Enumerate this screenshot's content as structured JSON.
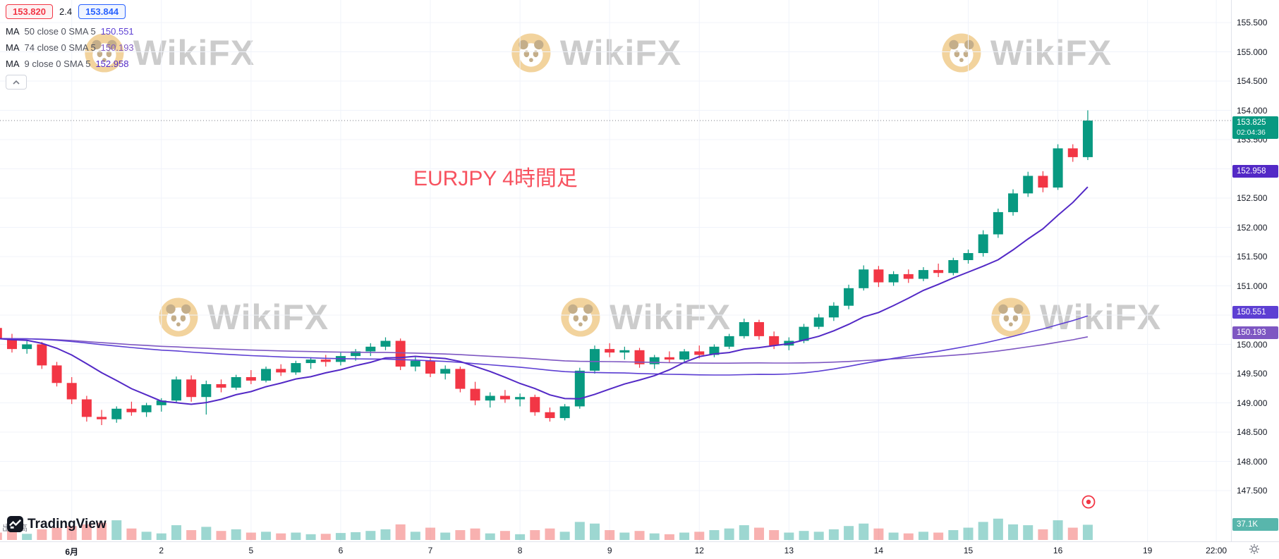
{
  "header": {
    "sell_price": "153.820",
    "spread": "2.4",
    "buy_price": "153.844",
    "indicators": [
      {
        "name": "MA",
        "params": "50 close 0 SMA 5",
        "value": "150.551",
        "color": "#5d3fd3"
      },
      {
        "name": "MA",
        "params": "74 close 0 SMA 5",
        "value": "150.193",
        "color": "#7e57c2"
      },
      {
        "name": "MA",
        "params": "9 close 0 SMA 5",
        "value": "152.958",
        "color": "#5329c6"
      }
    ]
  },
  "annotation": {
    "text": "EURJPY 4時間足",
    "color": "#f7525f"
  },
  "watermark": {
    "text": "WikiFX"
  },
  "volume_legend": {
    "label": "出来高"
  },
  "tradingview": {
    "label": "TradingView"
  },
  "price_axis": {
    "labels": [
      "155.500",
      "155.000",
      "154.500",
      "154.000",
      "153.500",
      "153.000",
      "152.500",
      "152.000",
      "151.500",
      "151.000",
      "150.500",
      "150.000",
      "149.500",
      "149.000",
      "148.500",
      "148.000",
      "147.500"
    ],
    "tags": [
      {
        "name": "last-price-tag",
        "text": "153.825",
        "sub": "02:04:36",
        "price": 153.825,
        "color": "#089981"
      },
      {
        "name": "ma9-price-tag",
        "text": "152.958",
        "price": 152.958,
        "color": "#5329c6"
      },
      {
        "name": "ma50-price-tag",
        "text": "150.551",
        "price": 150.551,
        "color": "#5d3fd3"
      },
      {
        "name": "ma74-price-tag",
        "text": "150.193",
        "price": 150.193,
        "color": "#7e57c2"
      }
    ],
    "volume_tag": {
      "text": "37.1K",
      "color": "#58b6ac"
    }
  },
  "time_axis": {
    "labels": [
      {
        "text": "6月",
        "idx": 5,
        "bold": true
      },
      {
        "text": "2",
        "idx": 11
      },
      {
        "text": "5",
        "idx": 17
      },
      {
        "text": "6",
        "idx": 23
      },
      {
        "text": "7",
        "idx": 29
      },
      {
        "text": "8",
        "idx": 35
      },
      {
        "text": "9",
        "idx": 41
      },
      {
        "text": "12",
        "idx": 47
      },
      {
        "text": "13",
        "idx": 53
      },
      {
        "text": "14",
        "idx": 59
      },
      {
        "text": "15",
        "idx": 65
      },
      {
        "text": "16",
        "idx": 71
      },
      {
        "text": "19",
        "idx": 77
      },
      {
        "text": "22:00",
        "idx": 81.6
      }
    ]
  },
  "chart_data": {
    "type": "candlestick",
    "title": "EURJPY 4時間足",
    "timeframe": "4h",
    "ylim": [
      147.3,
      155.6
    ],
    "last_price": 153.825,
    "countdown": "02:04:36",
    "colors": {
      "up": "#089981",
      "down": "#f23645",
      "vol_up": "rgba(38,166,154,0.45)",
      "vol_down": "rgba(239,83,80,0.45)",
      "grid": "#f0f3fa",
      "last_price_line": "#787b86"
    },
    "ma_seed_close": 150.1,
    "ma_periods": {
      "fast": 9,
      "mid": 50,
      "slow": 74
    },
    "ma_last_values": {
      "ma9": 152.958,
      "ma50": 150.551,
      "ma74": 150.193
    },
    "candles": [
      [
        150.28,
        150.34,
        150.04,
        150.1
      ],
      [
        150.1,
        150.18,
        149.86,
        149.92
      ],
      [
        149.92,
        150.06,
        149.84,
        150.0
      ],
      [
        150.0,
        150.04,
        149.58,
        149.64
      ],
      [
        149.64,
        149.7,
        149.28,
        149.34
      ],
      [
        149.34,
        149.44,
        148.98,
        149.06
      ],
      [
        149.06,
        149.12,
        148.68,
        148.76
      ],
      [
        148.76,
        148.88,
        148.62,
        148.72
      ],
      [
        148.72,
        148.94,
        148.66,
        148.9
      ],
      [
        148.9,
        149.02,
        148.78,
        148.84
      ],
      [
        148.84,
        149.0,
        148.76,
        148.96
      ],
      [
        148.96,
        149.08,
        148.85,
        149.04
      ],
      [
        149.04,
        149.45,
        149.0,
        149.4
      ],
      [
        149.4,
        149.47,
        149.02,
        149.1
      ],
      [
        149.1,
        149.38,
        148.8,
        149.32
      ],
      [
        149.32,
        149.4,
        149.18,
        149.26
      ],
      [
        149.26,
        149.48,
        149.22,
        149.44
      ],
      [
        149.44,
        149.56,
        149.32,
        149.38
      ],
      [
        149.38,
        149.62,
        149.35,
        149.58
      ],
      [
        149.58,
        149.66,
        149.46,
        149.52
      ],
      [
        149.52,
        149.72,
        149.48,
        149.68
      ],
      [
        149.68,
        149.78,
        149.58,
        149.74
      ],
      [
        149.74,
        149.82,
        149.62,
        149.7
      ],
      [
        149.7,
        149.86,
        149.64,
        149.8
      ],
      [
        149.8,
        149.92,
        149.72,
        149.88
      ],
      [
        149.88,
        150.02,
        149.8,
        149.96
      ],
      [
        149.96,
        150.12,
        149.9,
        150.06
      ],
      [
        150.06,
        150.1,
        149.56,
        149.62
      ],
      [
        149.62,
        149.78,
        149.54,
        149.72
      ],
      [
        149.72,
        149.76,
        149.44,
        149.5
      ],
      [
        149.5,
        149.64,
        149.4,
        149.58
      ],
      [
        149.58,
        149.62,
        149.18,
        149.24
      ],
      [
        149.24,
        149.36,
        148.96,
        149.04
      ],
      [
        149.04,
        149.18,
        148.92,
        149.12
      ],
      [
        149.12,
        149.22,
        149.0,
        149.06
      ],
      [
        149.06,
        149.16,
        148.94,
        149.1
      ],
      [
        149.1,
        149.14,
        148.78,
        148.84
      ],
      [
        148.84,
        148.92,
        148.68,
        148.74
      ],
      [
        148.74,
        148.98,
        148.7,
        148.94
      ],
      [
        148.94,
        149.6,
        148.9,
        149.55
      ],
      [
        149.55,
        149.98,
        149.5,
        149.92
      ],
      [
        149.92,
        150.02,
        149.78,
        149.86
      ],
      [
        149.86,
        149.96,
        149.74,
        149.9
      ],
      [
        149.9,
        149.94,
        149.6,
        149.66
      ],
      [
        149.66,
        149.82,
        149.58,
        149.78
      ],
      [
        149.78,
        149.88,
        149.68,
        149.74
      ],
      [
        149.74,
        149.92,
        149.7,
        149.88
      ],
      [
        149.88,
        149.98,
        149.76,
        149.82
      ],
      [
        149.82,
        150.0,
        149.78,
        149.96
      ],
      [
        149.96,
        150.18,
        149.92,
        150.14
      ],
      [
        150.14,
        150.44,
        150.1,
        150.38
      ],
      [
        150.38,
        150.42,
        150.08,
        150.14
      ],
      [
        150.14,
        150.22,
        149.92,
        149.98
      ],
      [
        149.98,
        150.12,
        149.9,
        150.06
      ],
      [
        150.06,
        150.35,
        150.02,
        150.3
      ],
      [
        150.3,
        150.52,
        150.26,
        150.46
      ],
      [
        150.46,
        150.72,
        150.4,
        150.66
      ],
      [
        150.66,
        151.02,
        150.6,
        150.96
      ],
      [
        150.96,
        151.35,
        150.92,
        151.28
      ],
      [
        151.28,
        151.34,
        150.98,
        151.06
      ],
      [
        151.06,
        151.25,
        151.0,
        151.2
      ],
      [
        151.2,
        151.28,
        151.05,
        151.12
      ],
      [
        151.12,
        151.32,
        151.08,
        151.27
      ],
      [
        151.27,
        151.38,
        151.15,
        151.22
      ],
      [
        151.22,
        151.48,
        151.18,
        151.44
      ],
      [
        151.44,
        151.62,
        151.38,
        151.56
      ],
      [
        151.56,
        151.95,
        151.5,
        151.88
      ],
      [
        151.88,
        152.32,
        151.82,
        152.26
      ],
      [
        152.26,
        152.65,
        152.2,
        152.58
      ],
      [
        152.58,
        152.95,
        152.52,
        152.88
      ],
      [
        152.88,
        152.96,
        152.6,
        152.68
      ],
      [
        152.68,
        153.42,
        152.64,
        153.35
      ],
      [
        153.35,
        153.42,
        153.12,
        153.2
      ],
      [
        153.2,
        154.0,
        153.15,
        153.825
      ]
    ],
    "volumes_k": [
      18,
      22,
      15,
      26,
      30,
      34,
      38,
      42,
      48,
      28,
      20,
      16,
      36,
      24,
      32,
      22,
      26,
      18,
      20,
      16,
      18,
      14,
      15,
      17,
      19,
      22,
      26,
      38,
      20,
      30,
      18,
      24,
      28,
      16,
      22,
      14,
      24,
      28,
      20,
      44,
      40,
      24,
      18,
      22,
      16,
      14,
      18,
      20,
      24,
      28,
      36,
      30,
      24,
      18,
      22,
      20,
      26,
      34,
      40,
      28,
      18,
      16,
      20,
      18,
      24,
      30,
      44,
      52,
      38,
      36,
      26,
      48,
      30,
      37.1
    ]
  }
}
